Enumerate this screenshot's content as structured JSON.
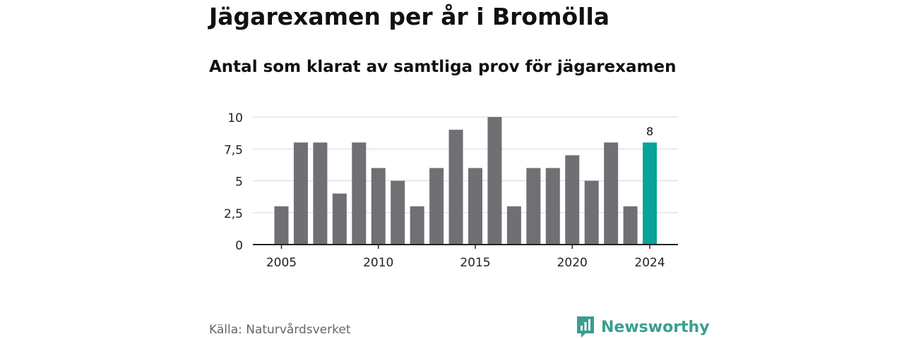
{
  "header": {
    "title": "Jägarexamen per år i Bromölla",
    "subtitle": "Antal som klarat av samtliga prov för jägarexamen"
  },
  "footer": {
    "source": "Källa: Naturvårdsverket",
    "brand": "Newsworthy",
    "brand_color": "#3a9f8f"
  },
  "chart_data": {
    "type": "bar",
    "title": "Jägarexamen per år i Bromölla",
    "subtitle": "Antal som klarat av samtliga prov för jägarexamen",
    "xlabel": "",
    "ylabel": "",
    "categories": [
      2005,
      2006,
      2007,
      2008,
      2009,
      2010,
      2011,
      2012,
      2013,
      2014,
      2015,
      2016,
      2017,
      2018,
      2019,
      2020,
      2021,
      2022,
      2023,
      2024
    ],
    "values": [
      3,
      8,
      8,
      4,
      8,
      6,
      5,
      3,
      6,
      9,
      6,
      10,
      3,
      6,
      6,
      7,
      5,
      8,
      3,
      8
    ],
    "ylim": [
      0,
      10
    ],
    "yticks": [
      0,
      2.5,
      5,
      7.5,
      10
    ],
    "ytick_labels": [
      "0",
      "2,5",
      "5",
      "7,5",
      "10"
    ],
    "xticks": [
      2005,
      2010,
      2015,
      2020,
      2024
    ],
    "xtick_labels": [
      "2005",
      "2010",
      "2015",
      "2020",
      "2024"
    ],
    "grid": true,
    "bar_color": "#706f74",
    "highlight_color": "#0aa39a",
    "highlight_category": 2024,
    "data_label": "8"
  }
}
